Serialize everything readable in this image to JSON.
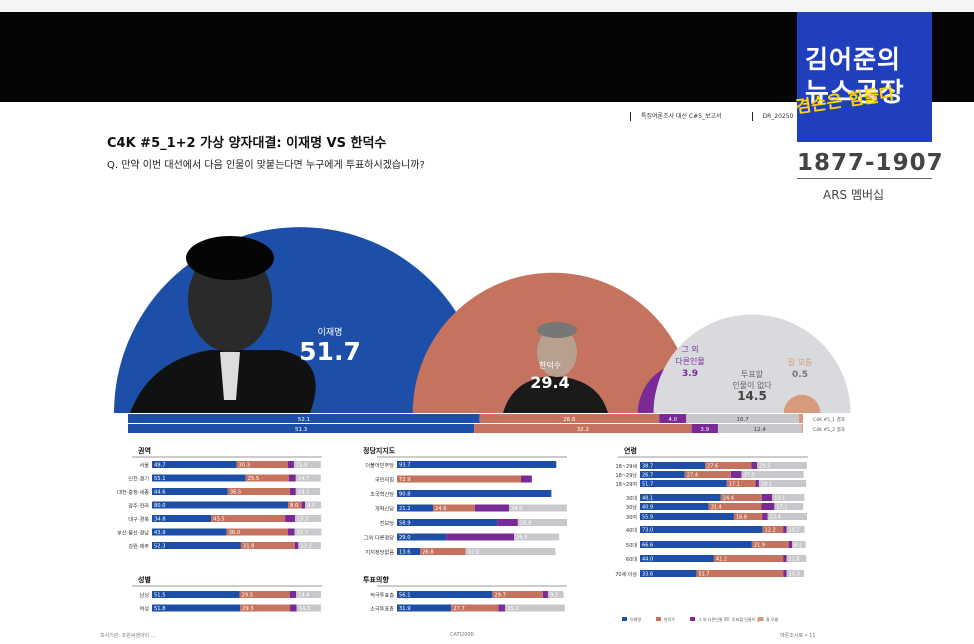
{
  "header": {
    "meta1": "특집여론조사 대선 C#5_보고서",
    "meta2": "DR_20250",
    "title": "C4K #5_1+2  가상 양자대결: 이재명 VS 한덕수",
    "question": "Q. 만약 이번 대선에서 다음 인물이 맞붙는다면 누구에게 투표하시겠습니까?"
  },
  "logo": {
    "line1": "김어준의",
    "line2": "뉴스공장",
    "overlay": "겸손은 힘들다",
    "years": "1877-1907",
    "sub": "ARS 멤버십"
  },
  "footer": {
    "left": "조사기관: 조원씨앤아이 ...",
    "center": "CATI2000",
    "right": "여론조사로 • 11"
  },
  "colors": {
    "lee": "#1d4fa8",
    "han": "#c5735f",
    "other": "#7a2a96",
    "undecided": "#c8c8cc",
    "dontknow": "#d79a7a"
  },
  "chart_data": [
    {
      "type": "bar",
      "title": "",
      "categories": [
        "이재명",
        "한덕수",
        "그 외 다른인물",
        "투표할 인물이 없다",
        "잘 모름"
      ],
      "values": [
        51.7,
        29.4,
        3.9,
        14.5,
        0.5
      ],
      "stack_rows": [
        {
          "name": "C4K #5_1 결과",
          "values": [
            52.1,
            26.6,
            4.0,
            16.7,
            0.6
          ]
        },
        {
          "name": "C4K #5_2 결과",
          "values": [
            51.3,
            32.2,
            3.9,
            12.4,
            0.2
          ]
        }
      ]
    },
    {
      "type": "bar",
      "title": "권역",
      "categories": [
        "서울",
        "인천·경기",
        "대전·충청·세종",
        "광주·전라",
        "대구·경북",
        "부산·울산·경남",
        "강원·제주"
      ],
      "series": [
        {
          "name": "이재명",
          "values": [
            49.7,
            55.1,
            44.6,
            80.0,
            34.8,
            43.9,
            52.3
          ]
        },
        {
          "name": "한덕수",
          "values": [
            30.3,
            25.5,
            36.5,
            8.0,
            43.5,
            36.0,
            31.8
          ]
        },
        {
          "name": "그 외 다른인물",
          "values": [
            3.5,
            4.0,
            3.5,
            2.0,
            5.9,
            4.0,
            2.0
          ]
        },
        {
          "name": "투표할 인물이 없다",
          "values": [
            15.8,
            14.7,
            14.3,
            9.5,
            15.3,
            15.7,
            13.2
          ]
        }
      ]
    },
    {
      "type": "bar",
      "title": "성별",
      "categories": [
        "남성",
        "여성"
      ],
      "series": [
        {
          "name": "이재명",
          "values": [
            51.5,
            51.8
          ]
        },
        {
          "name": "한덕수",
          "values": [
            29.5,
            29.3
          ]
        },
        {
          "name": "그 외 다른인물",
          "values": [
            3.8,
            4.0
          ]
        },
        {
          "name": "투표할 인물이 없다",
          "values": [
            14.6,
            14.3
          ]
        }
      ]
    },
    {
      "type": "bar",
      "title": "정당지지도",
      "categories": [
        "더불어민주당",
        "국민의힘",
        "조국혁신당",
        "개혁신당",
        "진보당",
        "그외 다른정당",
        "지지정당없음"
      ],
      "series": [
        {
          "name": "이재명",
          "values": [
            93.7,
            0,
            90.8,
            21.2,
            58.9,
            29.0,
            13.6
          ]
        },
        {
          "name": "한덕수",
          "values": [
            0,
            72.9,
            0,
            24.6,
            0,
            0,
            26.8
          ]
        },
        {
          "name": "그 외 다른인물",
          "values": [
            0,
            6.4,
            0,
            20.1,
            12.2,
            39.9,
            0
          ]
        },
        {
          "name": "투표할 인물이 없다",
          "values": [
            0,
            0,
            0,
            34.0,
            28.9,
            26.5,
            52.8
          ]
        }
      ]
    },
    {
      "type": "bar",
      "title": "투표의향",
      "categories": [
        "적극투표층",
        "소극투표층"
      ],
      "series": [
        {
          "name": "이재명",
          "values": [
            56.1,
            31.9
          ]
        },
        {
          "name": "한덕수",
          "values": [
            29.7,
            27.7
          ]
        },
        {
          "name": "그 외 다른인물",
          "values": [
            3.0,
            4.0
          ]
        },
        {
          "name": "투표할 인물이 없다",
          "values": [
            9.2,
            35.1
          ]
        }
      ]
    },
    {
      "type": "bar",
      "title": "연령",
      "categories": [
        "18~29세",
        "18~29남",
        "18~29여",
        "30대",
        "30남",
        "30여",
        "40대",
        "50대",
        "60대",
        "70세 이상"
      ],
      "series": [
        {
          "name": "이재명",
          "values": [
            38.7,
            26.7,
            51.7,
            48.1,
            40.9,
            55.9,
            73.0,
            66.6,
            44.0,
            33.6
          ]
        },
        {
          "name": "한덕수",
          "values": [
            27.6,
            27.4,
            17.1,
            24.4,
            31.4,
            16.8,
            12.2,
            21.9,
            41.2,
            51.7
          ]
        },
        {
          "name": "그 외 다른인물",
          "values": [
            3.5,
            6.3,
            2.0,
            6.2,
            7.7,
            3.3,
            2.0,
            2.0,
            2.0,
            2.0
          ]
        },
        {
          "name": "투표할 인물이 없다",
          "values": [
            29.5,
            37.0,
            28.1,
            19.1,
            17.1,
            23.4,
            10.7,
            8.1,
            11.8,
            10.3
          ]
        }
      ]
    }
  ],
  "legend": [
    "이재명",
    "한덕수",
    "그 외 다른인물",
    "투표할 인물이 없다",
    "잘 모름"
  ]
}
